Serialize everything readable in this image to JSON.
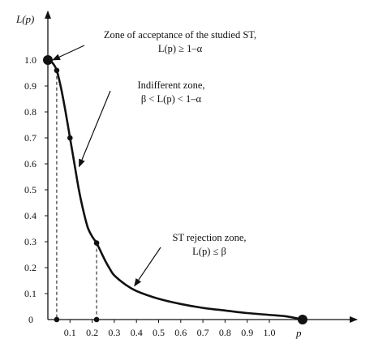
{
  "chart_data": {
    "type": "line",
    "ylabel": "L(p)",
    "xlabel": "p",
    "x_ticks": [
      "0",
      "0.1",
      "0.2",
      "0.3",
      "0.4",
      "0.5",
      "0.6",
      "0.7",
      "0.8",
      "0.9",
      "1.0"
    ],
    "y_ticks": [
      "0.1",
      "0.2",
      "0.3",
      "0.4",
      "0.5",
      "0.6",
      "0.7",
      "0.8",
      "0.9",
      "1.0"
    ],
    "xlim": [
      0,
      1.15
    ],
    "ylim": [
      0,
      1.05
    ],
    "series": [
      {
        "x": [
          0,
          0.02,
          0.04,
          0.06,
          0.08,
          0.1,
          0.12,
          0.14,
          0.16,
          0.18,
          0.2,
          0.22,
          0.24,
          0.26,
          0.28,
          0.3,
          0.35,
          0.4,
          0.5,
          0.6,
          0.7,
          0.8,
          0.9,
          1.0,
          1.08,
          1.15
        ],
        "y": [
          1.0,
          0.99,
          0.96,
          0.89,
          0.8,
          0.7,
          0.6,
          0.5,
          0.42,
          0.355,
          0.32,
          0.295,
          0.26,
          0.225,
          0.195,
          0.17,
          0.135,
          0.11,
          0.08,
          0.06,
          0.045,
          0.035,
          0.025,
          0.018,
          0.012,
          0.0
        ]
      }
    ],
    "markers": [
      {
        "x": 0.0,
        "y": 1.0,
        "size": "large"
      },
      {
        "x": 0.04,
        "y": 0.96,
        "size": "small"
      },
      {
        "x": 0.1,
        "y": 0.7,
        "size": "small"
      },
      {
        "x": 0.22,
        "y": 0.295,
        "size": "small"
      },
      {
        "x": 0.04,
        "y": 0.0,
        "size": "small"
      },
      {
        "x": 0.22,
        "y": 0.0,
        "size": "small"
      },
      {
        "x": 1.15,
        "y": 0.0,
        "size": "large"
      }
    ],
    "drop_lines_x": [
      0.04,
      0.22
    ],
    "annotations": [
      {
        "lines": [
          "Zone of acceptance of the studied ST,",
          "L(p) ≥ 1–α"
        ],
        "arrow_to": [
          0.0,
          1.0
        ]
      },
      {
        "lines": [
          "Indifferent zone,",
          "β < L(p) < 1–α"
        ],
        "arrow_to": [
          0.13,
          0.58
        ]
      },
      {
        "lines": [
          "ST rejection zone,",
          "L(p) ≤ β"
        ],
        "arrow_to": [
          0.38,
          0.12
        ]
      }
    ]
  }
}
